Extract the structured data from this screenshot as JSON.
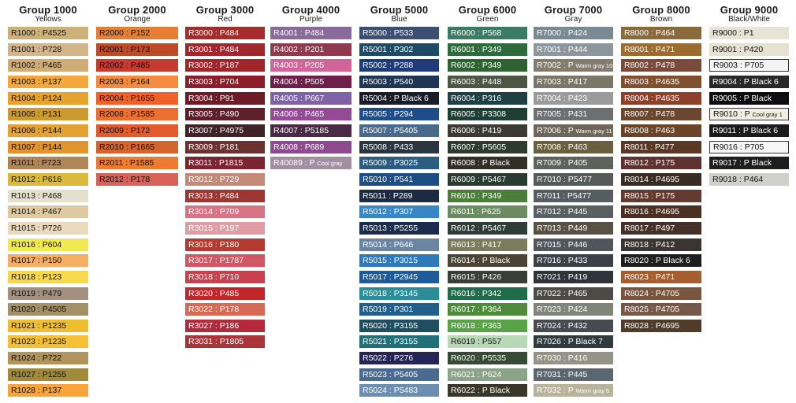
{
  "groups": [
    {
      "title": "Group 1000",
      "subtitle": "Yellows",
      "swatches": [
        {
          "label": "R1000 : P4525",
          "bg": "#cdb179",
          "fg": "#111111"
        },
        {
          "label": "R1001 : P728",
          "bg": "#d2b58d",
          "fg": "#111111"
        },
        {
          "label": "R1002 : P465",
          "bg": "#cfac76",
          "fg": "#111111"
        },
        {
          "label": "R1003 : P137",
          "bg": "#f4a73a",
          "fg": "#111111"
        },
        {
          "label": "R1004 : P124",
          "bg": "#e7a42c",
          "fg": "#111111"
        },
        {
          "label": "R1005 : P131",
          "bg": "#cc9a2e",
          "fg": "#111111"
        },
        {
          "label": "R1006 : P144",
          "bg": "#e5a132",
          "fg": "#111111"
        },
        {
          "label": "R1007 : P144",
          "bg": "#e2952f",
          "fg": "#111111"
        },
        {
          "label": "R1011 : P723",
          "bg": "#b0855a",
          "fg": "#111111"
        },
        {
          "label": "R1012 : P616",
          "bg": "#dbb93c",
          "fg": "#111111"
        },
        {
          "label": "R1013 : P468",
          "bg": "#e5dfce",
          "fg": "#111111"
        },
        {
          "label": "R1014 : P467",
          "bg": "#dec9a0",
          "fg": "#111111"
        },
        {
          "label": "R1015 : P726",
          "bg": "#ead9bd",
          "fg": "#111111"
        },
        {
          "label": "R1016 : P604",
          "bg": "#f0e951",
          "fg": "#111111"
        },
        {
          "label": "R1017 : P150",
          "bg": "#f5ae64",
          "fg": "#111111"
        },
        {
          "label": "R1018 : P123",
          "bg": "#f8d94b",
          "fg": "#111111"
        },
        {
          "label": "R1019 : P479",
          "bg": "#a3907e",
          "fg": "#111111"
        },
        {
          "label": "R1020 : P4505",
          "bg": "#a39068",
          "fg": "#111111"
        },
        {
          "label": "R1021 : P1235",
          "bg": "#eebd32",
          "fg": "#111111"
        },
        {
          "label": "R1023 : P1235",
          "bg": "#f6c035",
          "fg": "#111111"
        },
        {
          "label": "R1024 : P722",
          "bg": "#b1935b",
          "fg": "#111111"
        },
        {
          "label": "R1027 : P1255",
          "bg": "#a18a3a",
          "fg": "#111111"
        },
        {
          "label": "R1028 : P137",
          "bg": "#f7a43a",
          "fg": "#111111"
        }
      ]
    },
    {
      "title": "Group 2000",
      "subtitle": "Orange",
      "swatches": [
        {
          "label": "R2000 : P152",
          "bg": "#e67f33",
          "fg": "#111111"
        },
        {
          "label": "R2001 : P173",
          "bg": "#bf4a2a",
          "fg": "#111111"
        },
        {
          "label": "R2002 : P485",
          "bg": "#c73a2f",
          "fg": "#111111"
        },
        {
          "label": "R2003 : P164",
          "bg": "#f68a3e",
          "fg": "#111111"
        },
        {
          "label": "R2004 : P1655",
          "bg": "#f0622a",
          "fg": "#111111"
        },
        {
          "label": "R2008 : P1585",
          "bg": "#ed6f30",
          "fg": "#111111"
        },
        {
          "label": "R2009 : P172",
          "bg": "#e45a2b",
          "fg": "#111111"
        },
        {
          "label": "R2010 : P1665",
          "bg": "#d4652f",
          "fg": "#111111"
        },
        {
          "label": "R2011 : P1585",
          "bg": "#ec7c30",
          "fg": "#111111"
        },
        {
          "label": "R2012 : P178",
          "bg": "#d7625a",
          "fg": "#111111"
        }
      ]
    },
    {
      "title": "Group 3000",
      "subtitle": "Red",
      "swatches": [
        {
          "label": "R3000 : P484",
          "bg": "#a82b2b",
          "fg": "#ffffff"
        },
        {
          "label": "R3001 : P484",
          "bg": "#a2262e",
          "fg": "#ffffff"
        },
        {
          "label": "R3002 : P187",
          "bg": "#a0262c",
          "fg": "#ffffff"
        },
        {
          "label": "R3003 : P704",
          "bg": "#8d1d2a",
          "fg": "#ffffff"
        },
        {
          "label": "R3004 : P91",
          "bg": "#6d1b27",
          "fg": "#ffffff"
        },
        {
          "label": "R3005 : P490",
          "bg": "#5e1f2a",
          "fg": "#ffffff"
        },
        {
          "label": "R3007 : P4975",
          "bg": "#3f2328",
          "fg": "#ffffff"
        },
        {
          "label": "R3009 : P181",
          "bg": "#6c3230",
          "fg": "#ffffff"
        },
        {
          "label": "R3011 : P1815",
          "bg": "#7b2530",
          "fg": "#ffffff"
        },
        {
          "label": "R3012 : P729",
          "bg": "#c48979",
          "fg": "#ffffff"
        },
        {
          "label": "R3013 : P484",
          "bg": "#9c3733",
          "fg": "#ffffff"
        },
        {
          "label": "R3014 : P709",
          "bg": "#d67483",
          "fg": "#ffffff"
        },
        {
          "label": "R3015 : P197",
          "bg": "#e09da5",
          "fg": "#ffffff"
        },
        {
          "label": "R3016 : P180",
          "bg": "#b43b2f",
          "fg": "#ffffff"
        },
        {
          "label": "R3017 : P1787",
          "bg": "#d05865",
          "fg": "#ffffff"
        },
        {
          "label": "R3018 : P710",
          "bg": "#c9404f",
          "fg": "#ffffff"
        },
        {
          "label": "R3020 : P485",
          "bg": "#c2262b",
          "fg": "#ffffff"
        },
        {
          "label": "R3022 : P178",
          "bg": "#d86a55",
          "fg": "#ffffff"
        },
        {
          "label": "R3027 : P186",
          "bg": "#b42a3a",
          "fg": "#ffffff"
        },
        {
          "label": "R3031 : P1805",
          "bg": "#a9343a",
          "fg": "#ffffff"
        }
      ]
    },
    {
      "title": "Group 4000",
      "subtitle": "Purple",
      "swatches": [
        {
          "label": "R4001 : P484",
          "bg": "#8a6a9b",
          "fg": "#ffffff"
        },
        {
          "label": "R4002 : P201",
          "bg": "#903a4f",
          "fg": "#ffffff"
        },
        {
          "label": "R4003 : P205",
          "bg": "#d1659a",
          "fg": "#ffffff"
        },
        {
          "label": "R4004 : P505",
          "bg": "#6e1f4a",
          "fg": "#ffffff"
        },
        {
          "label": "R4005 : P667",
          "bg": "#7f62a8",
          "fg": "#ffffff"
        },
        {
          "label": "R4006 : P465",
          "bg": "#954a98",
          "fg": "#ffffff"
        },
        {
          "label": "R4007 : P5185",
          "bg": "#4a2a45",
          "fg": "#ffffff"
        },
        {
          "label": "R4008 : P689",
          "bg": "#8e4a8e",
          "fg": "#ffffff"
        },
        {
          "label": "R40089 : P",
          "small": "Cool gray",
          "bg": "#a38fa2",
          "fg": "#ffffff"
        }
      ]
    },
    {
      "title": "Group 5000",
      "subtitle": "Blue",
      "swatches": [
        {
          "label": "R5000 : P533",
          "bg": "#3b4f73",
          "fg": "#ffffff"
        },
        {
          "label": "R5001 : P302",
          "bg": "#1f4a64",
          "fg": "#ffffff"
        },
        {
          "label": "R5002 : P288",
          "bg": "#1f3b78",
          "fg": "#ffffff"
        },
        {
          "label": "R5003 : P540",
          "bg": "#1e3553",
          "fg": "#ffffff"
        },
        {
          "label": "R5004 : P Black 6",
          "bg": "#1a1d28",
          "fg": "#ffffff"
        },
        {
          "label": "R5005 : P294",
          "bg": "#1f4d89",
          "fg": "#ffffff"
        },
        {
          "label": "R5007 : P5405",
          "bg": "#4a6a8c",
          "fg": "#ffffff"
        },
        {
          "label": "R5008 : P433",
          "bg": "#2a3540",
          "fg": "#ffffff"
        },
        {
          "label": "R5009 : P3025",
          "bg": "#2c5c7e",
          "fg": "#ffffff"
        },
        {
          "label": "R5010 : P541",
          "bg": "#1d4f85",
          "fg": "#ffffff"
        },
        {
          "label": "R5011 : P289",
          "bg": "#1c2a42",
          "fg": "#ffffff"
        },
        {
          "label": "R5012 : P307",
          "bg": "#3a86c4",
          "fg": "#ffffff"
        },
        {
          "label": "R5013 : P5255",
          "bg": "#1c2c4c",
          "fg": "#ffffff"
        },
        {
          "label": "R5014 : P646",
          "bg": "#6c85a2",
          "fg": "#ffffff"
        },
        {
          "label": "R5015 : P3015",
          "bg": "#2f79b8",
          "fg": "#ffffff"
        },
        {
          "label": "R5017 : P2945",
          "bg": "#1d5c98",
          "fg": "#ffffff"
        },
        {
          "label": "R5018 : P3145",
          "bg": "#2a8e98",
          "fg": "#ffffff"
        },
        {
          "label": "R5019 : P301",
          "bg": "#215f8a",
          "fg": "#ffffff"
        },
        {
          "label": "R5020 : P3155",
          "bg": "#1e4f5e",
          "fg": "#ffffff"
        },
        {
          "label": "R5021 : P3155",
          "bg": "#1f7078",
          "fg": "#ffffff"
        },
        {
          "label": "R5022 : P276",
          "bg": "#262456",
          "fg": "#ffffff"
        },
        {
          "label": "R5023 : P5405",
          "bg": "#4a6a91",
          "fg": "#ffffff"
        },
        {
          "label": "R5024 : P5483",
          "bg": "#6a8fb0",
          "fg": "#ffffff"
        }
      ]
    },
    {
      "title": "Group 6000",
      "subtitle": "Green",
      "swatches": [
        {
          "label": "R6000 : P568",
          "bg": "#3b7b66",
          "fg": "#ffffff"
        },
        {
          "label": "R6001 : P349",
          "bg": "#2e6b3c",
          "fg": "#ffffff"
        },
        {
          "label": "R6002 : P349",
          "bg": "#2c6330",
          "fg": "#ffffff"
        },
        {
          "label": "R6003 : P448",
          "bg": "#4b5743",
          "fg": "#ffffff"
        },
        {
          "label": "R6004 : P316",
          "bg": "#1f4146",
          "fg": "#ffffff"
        },
        {
          "label": "R6005 : P3308",
          "bg": "#1f3e34",
          "fg": "#ffffff"
        },
        {
          "label": "R6006 : P419",
          "bg": "#3b3a33",
          "fg": "#ffffff"
        },
        {
          "label": "R6007 : P5605",
          "bg": "#2d3a2f",
          "fg": "#ffffff"
        },
        {
          "label": "R6008 : P Black",
          "bg": "#322e26",
          "fg": "#ffffff"
        },
        {
          "label": "R6009 : P5467",
          "bg": "#2a3b31",
          "fg": "#ffffff"
        },
        {
          "label": "R6010 : P349",
          "bg": "#4b7d3b",
          "fg": "#ffffff"
        },
        {
          "label": "R6011 : P625",
          "bg": "#6b8c63",
          "fg": "#ffffff"
        },
        {
          "label": "R6012 : P5467",
          "bg": "#2f3d38",
          "fg": "#ffffff"
        },
        {
          "label": "R6013 : P417",
          "bg": "#7b7c5e",
          "fg": "#ffffff"
        },
        {
          "label": "R6014 : P Black",
          "bg": "#4a4435",
          "fg": "#ffffff"
        },
        {
          "label": "R6015 : P426",
          "bg": "#3b3e38",
          "fg": "#ffffff"
        },
        {
          "label": "R6016 : P342",
          "bg": "#1f6b4a",
          "fg": "#ffffff"
        },
        {
          "label": "R6017 : P364",
          "bg": "#4d8a3a",
          "fg": "#ffffff"
        },
        {
          "label": "R6018 : P363",
          "bg": "#58a345",
          "fg": "#ffffff"
        },
        {
          "label": "R6019 : P557",
          "bg": "#b7d9b6",
          "fg": "#111111"
        },
        {
          "label": "R6020 : P5535",
          "bg": "#374a35",
          "fg": "#ffffff"
        },
        {
          "label": "R6021 : P624",
          "bg": "#8aa389",
          "fg": "#ffffff"
        },
        {
          "label": "R6022 : P Black",
          "bg": "#3a3628",
          "fg": "#ffffff"
        }
      ]
    },
    {
      "title": "Group 7000",
      "subtitle": "Gray",
      "swatches": [
        {
          "label": "R7000 : P424",
          "bg": "#7a8a93",
          "fg": "#ffffff"
        },
        {
          "label": "R7001 : P444",
          "bg": "#8c969c",
          "fg": "#ffffff"
        },
        {
          "label": "R7002 : P",
          "small": "Warm gray 10",
          "bg": "#817c6e",
          "fg": "#ffffff"
        },
        {
          "label": "R7003 : P417",
          "bg": "#7a7769",
          "fg": "#ffffff"
        },
        {
          "label": "R7004 : P423",
          "bg": "#9b9b9b",
          "fg": "#ffffff"
        },
        {
          "label": "R7005 : P431",
          "bg": "#6c7073",
          "fg": "#ffffff"
        },
        {
          "label": "R7006 : P",
          "small": "Warm gray 11",
          "bg": "#6f6659",
          "fg": "#ffffff"
        },
        {
          "label": "R7008 : P463",
          "bg": "#6a5f3e",
          "fg": "#ffffff"
        },
        {
          "label": "R7009 : P405",
          "bg": "#5d625a",
          "fg": "#ffffff"
        },
        {
          "label": "R7010 : P5477",
          "bg": "#555b58",
          "fg": "#ffffff"
        },
        {
          "label": "R7011 : P5477",
          "bg": "#555d62",
          "fg": "#ffffff"
        },
        {
          "label": "R7012 : P445",
          "bg": "#5a6062",
          "fg": "#ffffff"
        },
        {
          "label": "R7013 : P449",
          "bg": "#575244",
          "fg": "#ffffff"
        },
        {
          "label": "R7015 : P446",
          "bg": "#51565c",
          "fg": "#ffffff"
        },
        {
          "label": "R7016 : P433",
          "bg": "#3b4146",
          "fg": "#ffffff"
        },
        {
          "label": "R7021 : P419",
          "bg": "#303337",
          "fg": "#ffffff"
        },
        {
          "label": "R7022 : P465",
          "bg": "#4c4a44",
          "fg": "#ffffff"
        },
        {
          "label": "R7023 : P424",
          "bg": "#818479",
          "fg": "#ffffff"
        },
        {
          "label": "R7024 : P432",
          "bg": "#474a50",
          "fg": "#ffffff"
        },
        {
          "label": "R7026 : P Black 7",
          "bg": "#2f3b3e",
          "fg": "#ffffff"
        },
        {
          "label": "R7030 : P416",
          "bg": "#939388",
          "fg": "#ffffff"
        },
        {
          "label": "R7031 : P445",
          "bg": "#5b6770",
          "fg": "#ffffff"
        },
        {
          "label": "R7032 : P",
          "small": "Warm gray 5",
          "bg": "#b8b49c",
          "fg": "#ffffff"
        }
      ]
    },
    {
      "title": "Group 8000",
      "subtitle": "Brown",
      "swatches": [
        {
          "label": "R8000 : P464",
          "bg": "#8a6a3b",
          "fg": "#ffffff"
        },
        {
          "label": "R8001 : P471",
          "bg": "#9c6b30",
          "fg": "#ffffff"
        },
        {
          "label": "R8002 : P478",
          "bg": "#7a4a3a",
          "fg": "#ffffff"
        },
        {
          "label": "R8003 : P4635",
          "bg": "#80502e",
          "fg": "#ffffff"
        },
        {
          "label": "R8004 : P4635",
          "bg": "#8e402a",
          "fg": "#ffffff"
        },
        {
          "label": "R8007 : P478",
          "bg": "#6c4730",
          "fg": "#ffffff"
        },
        {
          "label": "R8008 : P463",
          "bg": "#6b4428",
          "fg": "#ffffff"
        },
        {
          "label": "R8011 : P477",
          "bg": "#5a3826",
          "fg": "#ffffff"
        },
        {
          "label": "R8012 : P175",
          "bg": "#5e3230",
          "fg": "#ffffff"
        },
        {
          "label": "R8014 : P4695",
          "bg": "#382c22",
          "fg": "#ffffff"
        },
        {
          "label": "R8015 : P175",
          "bg": "#633a2f",
          "fg": "#ffffff"
        },
        {
          "label": "R8016 : P4695",
          "bg": "#4c2f23",
          "fg": "#ffffff"
        },
        {
          "label": "R8017 : P497",
          "bg": "#45302a",
          "fg": "#ffffff"
        },
        {
          "label": "R8018 : P412",
          "bg": "#3a3432",
          "fg": "#ffffff"
        },
        {
          "label": "R8020 : P Black 6",
          "bg": "#1d1d1d",
          "fg": "#ffffff"
        },
        {
          "label": "R8023 : P471",
          "bg": "#a65e2e",
          "fg": "#ffffff"
        },
        {
          "label": "R8024 : P4705",
          "bg": "#79553d",
          "fg": "#ffffff"
        },
        {
          "label": "R8025 : P4705",
          "bg": "#755847",
          "fg": "#ffffff"
        },
        {
          "label": "R8028 : P4695",
          "bg": "#4e3b2a",
          "fg": "#ffffff"
        }
      ]
    },
    {
      "title": "Group 9000",
      "subtitle": "Black/White",
      "swatches": [
        {
          "label": "R9000 : P1",
          "bg": "#e7e3d6",
          "fg": "#111111"
        },
        {
          "label": "R9001 : P420",
          "bg": "#e6e1d2",
          "fg": "#111111"
        },
        {
          "label": "R9003 : P705",
          "bg": "#f4f4f4",
          "fg": "#111111",
          "boxed": true
        },
        {
          "label": "R9004 : P Black 6",
          "bg": "#282828",
          "fg": "#ffffff"
        },
        {
          "label": "R9005 : P Black",
          "bg": "#0e0e10",
          "fg": "#ffffff"
        },
        {
          "label": "R9010 : P",
          "small": "Cool gray 1",
          "bg": "#f1ede1",
          "fg": "#111111",
          "boxed": true
        },
        {
          "label": "R9011 : P Black 6",
          "bg": "#1c1c1c",
          "fg": "#ffffff"
        },
        {
          "label": "R9016 : P705",
          "bg": "#f6f6f6",
          "fg": "#111111",
          "boxed": true
        },
        {
          "label": "R9017 : P Black",
          "bg": "#1e1e1e",
          "fg": "#ffffff"
        },
        {
          "label": "R9018 : P464",
          "bg": "#cfd0ca",
          "fg": "#111111"
        }
      ]
    }
  ]
}
